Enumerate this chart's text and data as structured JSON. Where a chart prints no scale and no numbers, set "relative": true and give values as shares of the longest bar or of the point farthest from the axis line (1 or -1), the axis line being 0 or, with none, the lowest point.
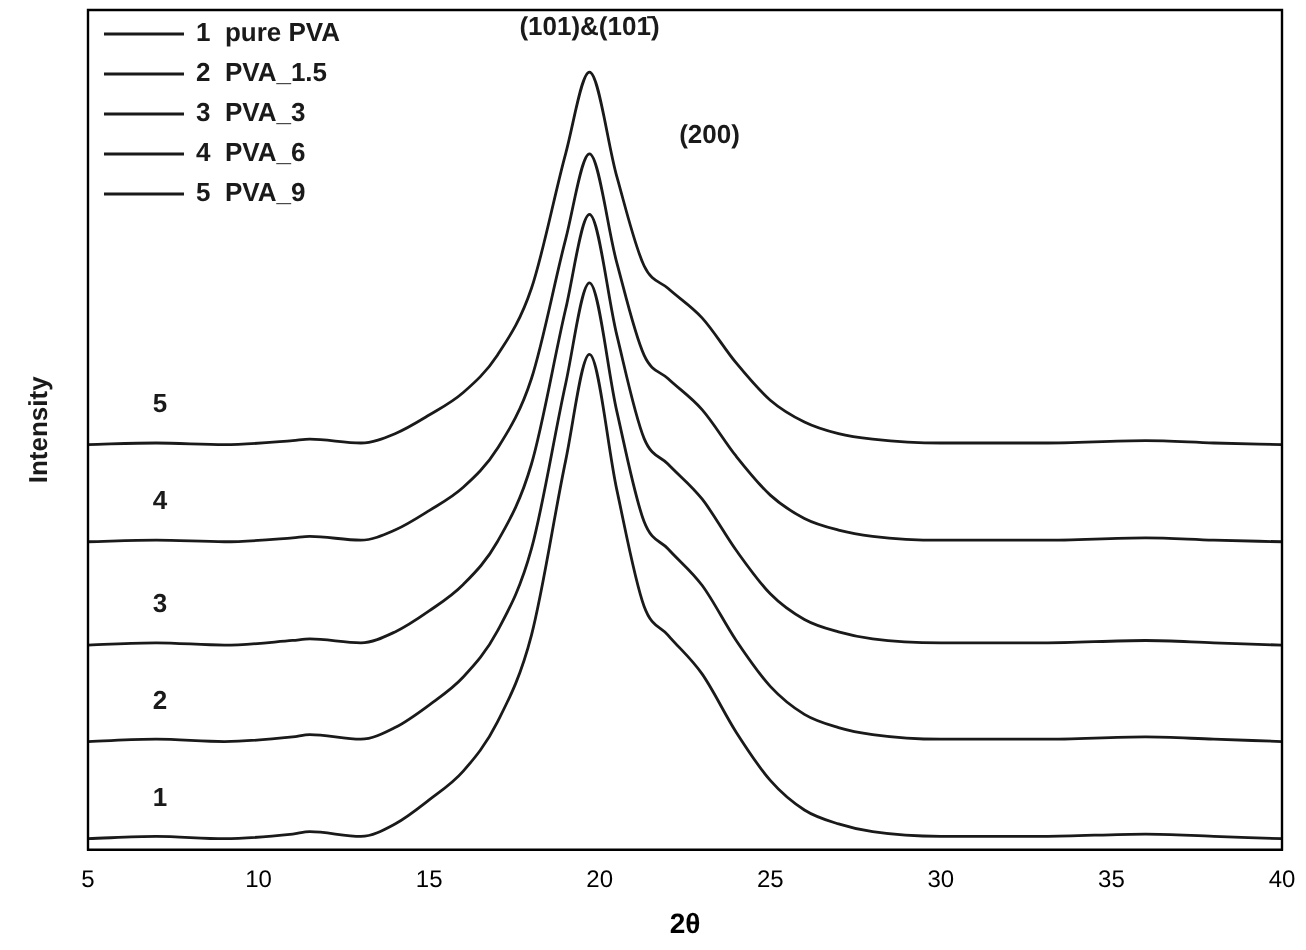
{
  "chart_data": {
    "type": "line",
    "relative": true,
    "xlabel": "2θ",
    "ylabel": "Intensity",
    "xlim": [
      5,
      40
    ],
    "xticks": [
      5,
      10,
      15,
      20,
      25,
      30,
      35,
      40
    ],
    "tick_labels": "x",
    "grid": false,
    "legend": "top left",
    "marker": "none",
    "line_style": "solid",
    "x": [
      5,
      7,
      9,
      11,
      11.5,
      13,
      14,
      15,
      16,
      17,
      18,
      19,
      19.7,
      20.5,
      21.3,
      22,
      23,
      24,
      25,
      26,
      27,
      28,
      30,
      33,
      36,
      38,
      40
    ],
    "series": [
      {
        "name": "1  pure PVA",
        "color": "#1a1a1a",
        "values": [
          0.014,
          0.017,
          0.014,
          0.02,
          0.023,
          0.017,
          0.033,
          0.064,
          0.101,
          0.164,
          0.276,
          0.5,
          0.637,
          0.463,
          0.313,
          0.276,
          0.226,
          0.151,
          0.089,
          0.051,
          0.033,
          0.023,
          0.017,
          0.017,
          0.02,
          0.017,
          0.014
        ]
      },
      {
        "name": "2  PVA_1.5",
        "color": "#1a1a1a",
        "values": [
          0.139,
          0.142,
          0.139,
          0.145,
          0.148,
          0.142,
          0.157,
          0.186,
          0.222,
          0.281,
          0.387,
          0.599,
          0.729,
          0.564,
          0.422,
          0.387,
          0.34,
          0.269,
          0.21,
          0.174,
          0.157,
          0.148,
          0.142,
          0.142,
          0.145,
          0.142,
          0.139
        ]
      },
      {
        "name": "3  PVA_3",
        "color": "#1a1a1a",
        "values": [
          0.263,
          0.266,
          0.263,
          0.269,
          0.271,
          0.266,
          0.28,
          0.307,
          0.341,
          0.396,
          0.496,
          0.695,
          0.817,
          0.662,
          0.529,
          0.496,
          0.451,
          0.385,
          0.329,
          0.296,
          0.28,
          0.271,
          0.266,
          0.266,
          0.269,
          0.266,
          0.263
        ]
      },
      {
        "name": "4  PVA_6",
        "color": "#1a1a1a",
        "values": [
          0.396,
          0.398,
          0.396,
          0.401,
          0.403,
          0.398,
          0.411,
          0.436,
          0.466,
          0.516,
          0.606,
          0.785,
          0.895,
          0.755,
          0.636,
          0.606,
          0.566,
          0.506,
          0.456,
          0.426,
          0.411,
          0.403,
          0.398,
          0.398,
          0.401,
          0.398,
          0.396
        ]
      },
      {
        "name": "5  PVA_9",
        "color": "#1a1a1a",
        "values": [
          0.521,
          0.523,
          0.521,
          0.526,
          0.528,
          0.523,
          0.535,
          0.559,
          0.588,
          0.636,
          0.722,
          0.895,
          1,
          0.866,
          0.751,
          0.722,
          0.684,
          0.626,
          0.578,
          0.55,
          0.535,
          0.528,
          0.523,
          0.523,
          0.526,
          0.523,
          0.521
        ]
      }
    ],
    "annotations": [
      "(101)&(101̄)",
      "(200)",
      "5",
      "4",
      "3",
      "2",
      "1"
    ]
  }
}
